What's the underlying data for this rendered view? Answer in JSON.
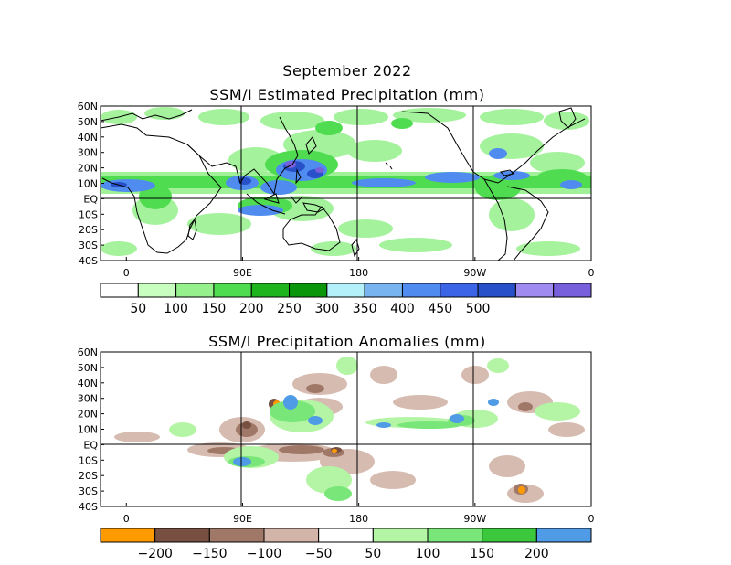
{
  "figure": {
    "month_title": "September 2022",
    "top_panel": {
      "title": "SSM/I Estimated Precipitation (mm)",
      "lat_labels": [
        "60N",
        "50N",
        "40N",
        "30N",
        "20N",
        "10N",
        "EQ",
        "10S",
        "20S",
        "30S",
        "40S"
      ],
      "lon_labels": [
        "0",
        "90E",
        "180",
        "90W",
        "0"
      ],
      "colorbar": {
        "colors": [
          "#ffffff",
          "#c8ffc0",
          "#96f08c",
          "#50dc50",
          "#1eb41e",
          "#0a960a",
          "#b4f0fa",
          "#78b4f0",
          "#508cf0",
          "#3c64e6",
          "#2850c8",
          "#a08cf0",
          "#7860dc"
        ],
        "labels": [
          "50",
          "100",
          "150",
          "200",
          "250",
          "300",
          "350",
          "400",
          "450",
          "500"
        ]
      }
    },
    "bottom_panel": {
      "title": "SSM/I Precipitation Anomalies (mm)",
      "lat_labels": [
        "60N",
        "50N",
        "40N",
        "30N",
        "20N",
        "10N",
        "EQ",
        "10S",
        "20S",
        "30S",
        "40S"
      ],
      "lon_labels": [
        "0",
        "90E",
        "180",
        "90W",
        "0"
      ],
      "colorbar": {
        "colors": [
          "#ff9a00",
          "#785042",
          "#a07868",
          "#d2b4a8",
          "#ffffff",
          "#b4f5a5",
          "#78e678",
          "#3cc83c",
          "#509be6"
        ],
        "labels": [
          "−200",
          "−150",
          "−100",
          "−50",
          "50",
          "100",
          "150",
          "200"
        ]
      }
    }
  }
}
